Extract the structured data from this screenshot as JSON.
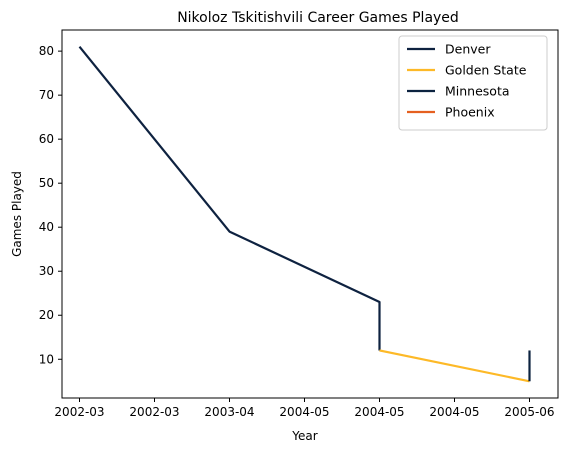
{
  "chart_data": {
    "type": "line",
    "title": "Nikoloz Tskitishvili Career Games Played",
    "xlabel": "Year",
    "ylabel": "Games Played",
    "ylim": [
      1.2,
      84.8
    ],
    "yticks": [
      10,
      20,
      30,
      40,
      50,
      60,
      70,
      80
    ],
    "x_tick_labels": [
      "2002-03",
      "2002-03",
      "2003-04",
      "2004-05",
      "2004-05",
      "2004-05",
      "2005-06"
    ],
    "grid": false,
    "legend_position": "top-right",
    "series": [
      {
        "name": "Denver",
        "color": "#0E2240",
        "points": [
          {
            "x": "2002-03",
            "y": 81
          },
          {
            "x": "2003-04",
            "y": 39
          },
          {
            "x": "2004-05",
            "y": 23
          },
          {
            "x": "2004-05",
            "y": 12
          }
        ]
      },
      {
        "name": "Golden State",
        "color": "#FDB927",
        "points": [
          {
            "x": "2004-05",
            "y": 12
          },
          {
            "x": "2005-06",
            "y": 5
          }
        ]
      },
      {
        "name": "Minnesota",
        "color": "#0C2340",
        "points": [
          {
            "x": "2005-06",
            "y": 5
          },
          {
            "x": "2005-06",
            "y": 12
          }
        ]
      },
      {
        "name": "Phoenix",
        "color": "#E56020",
        "points": [
          {
            "x": "2005-06",
            "y": 12
          },
          {
            "x": "2005-06",
            "y": 12
          }
        ]
      }
    ]
  }
}
